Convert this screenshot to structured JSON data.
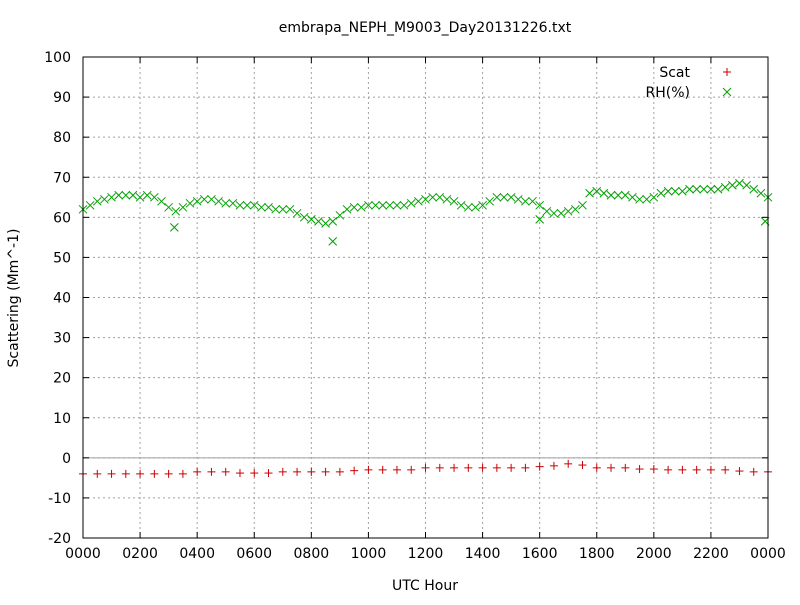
{
  "chart_data": {
    "type": "scatter",
    "title": "embrapa_NEPH_M9003_Day20131226.txt",
    "xlabel": "UTC Hour",
    "ylabel": "Scattering (Mm^-1)",
    "xlim": [
      0,
      24
    ],
    "ylim": [
      -20,
      100
    ],
    "xtick_labels": [
      "0000",
      "0200",
      "0400",
      "0600",
      "0800",
      "1000",
      "1200",
      "1400",
      "1600",
      "1800",
      "2000",
      "2200",
      "0000"
    ],
    "ytick_labels": [
      "-20",
      "-10",
      "0",
      "10",
      "20",
      "30",
      "40",
      "50",
      "60",
      "70",
      "80",
      "90",
      "100"
    ],
    "grid": true,
    "legend": "top-right",
    "series": [
      {
        "name": "Scat",
        "marker": "plus",
        "color": "#cc0000",
        "x": [
          0.0,
          0.5,
          1.0,
          1.5,
          2.0,
          2.5,
          3.0,
          3.5,
          4.0,
          4.5,
          5.0,
          5.5,
          6.0,
          6.5,
          7.0,
          7.5,
          8.0,
          8.5,
          9.0,
          9.5,
          10.0,
          10.5,
          11.0,
          11.5,
          12.0,
          12.5,
          13.0,
          13.5,
          14.0,
          14.5,
          15.0,
          15.5,
          16.0,
          16.5,
          17.0,
          17.5,
          18.0,
          18.5,
          19.0,
          19.5,
          20.0,
          20.5,
          21.0,
          21.5,
          22.0,
          22.5,
          23.0,
          23.5,
          24.0
        ],
        "y": [
          -4,
          -4,
          -4,
          -4,
          -4,
          -4,
          -4,
          -4,
          -3.5,
          -3.5,
          -3.5,
          -3.8,
          -3.8,
          -3.8,
          -3.5,
          -3.5,
          -3.5,
          -3.5,
          -3.5,
          -3.2,
          -3,
          -3,
          -3,
          -3,
          -2.5,
          -2.5,
          -2.5,
          -2.5,
          -2.5,
          -2.5,
          -2.5,
          -2.5,
          -2.2,
          -2,
          -1.5,
          -1.8,
          -2.5,
          -2.5,
          -2.5,
          -2.8,
          -2.8,
          -3,
          -3,
          -3,
          -3,
          -3,
          -3.3,
          -3.5,
          -3.5
        ]
      },
      {
        "name": "RH(%)",
        "marker": "cross",
        "color": "#00a000",
        "x": [
          0.0,
          0.25,
          0.5,
          0.75,
          1.0,
          1.25,
          1.5,
          1.75,
          2.0,
          2.25,
          2.5,
          2.75,
          3.0,
          3.25,
          3.5,
          3.75,
          4.0,
          4.25,
          4.5,
          4.75,
          5.0,
          5.25,
          5.5,
          5.75,
          6.0,
          6.25,
          6.5,
          6.75,
          7.0,
          7.25,
          7.5,
          7.75,
          8.0,
          8.25,
          8.5,
          8.75,
          9.0,
          9.25,
          9.5,
          9.75,
          10.0,
          10.25,
          10.5,
          10.75,
          11.0,
          11.25,
          11.5,
          11.75,
          12.0,
          12.25,
          12.5,
          12.75,
          13.0,
          13.25,
          13.5,
          13.75,
          14.0,
          14.25,
          14.5,
          14.75,
          15.0,
          15.25,
          15.5,
          15.75,
          16.0,
          16.25,
          16.5,
          16.75,
          17.0,
          17.25,
          17.5,
          17.75,
          18.0,
          18.25,
          18.5,
          18.75,
          19.0,
          19.25,
          19.5,
          19.75,
          20.0,
          20.25,
          20.5,
          20.75,
          21.0,
          21.25,
          21.5,
          21.75,
          22.0,
          22.25,
          22.5,
          22.75,
          23.0,
          23.25,
          23.5,
          23.75,
          24.0,
          3.2,
          8.75,
          16.0,
          23.9
        ],
        "y": [
          62,
          63,
          64,
          64.5,
          65,
          65.5,
          65.5,
          65.5,
          65,
          65.5,
          65,
          64,
          62.5,
          61.5,
          62.5,
          63.5,
          64,
          64.5,
          64.5,
          64,
          63.5,
          63.5,
          63,
          63,
          63,
          62.5,
          62.5,
          62,
          62,
          62,
          61,
          60,
          59.5,
          59,
          58.5,
          59,
          60.5,
          62,
          62.5,
          62.5,
          63,
          63,
          63,
          63,
          63,
          63,
          63.5,
          64,
          64.5,
          65,
          65,
          64.5,
          64,
          63,
          62.5,
          62.5,
          63,
          64,
          65,
          65,
          65,
          64.5,
          64,
          64,
          63,
          61.5,
          61,
          61,
          61.5,
          62,
          63,
          66,
          66.5,
          66,
          65.5,
          65.5,
          65.5,
          65,
          64.5,
          64.5,
          65,
          66,
          66.5,
          66.5,
          66.5,
          67,
          67,
          67,
          67,
          67,
          67.5,
          68,
          68.5,
          68,
          67,
          66,
          65,
          57.5,
          54,
          59.5,
          59
        ]
      }
    ]
  }
}
